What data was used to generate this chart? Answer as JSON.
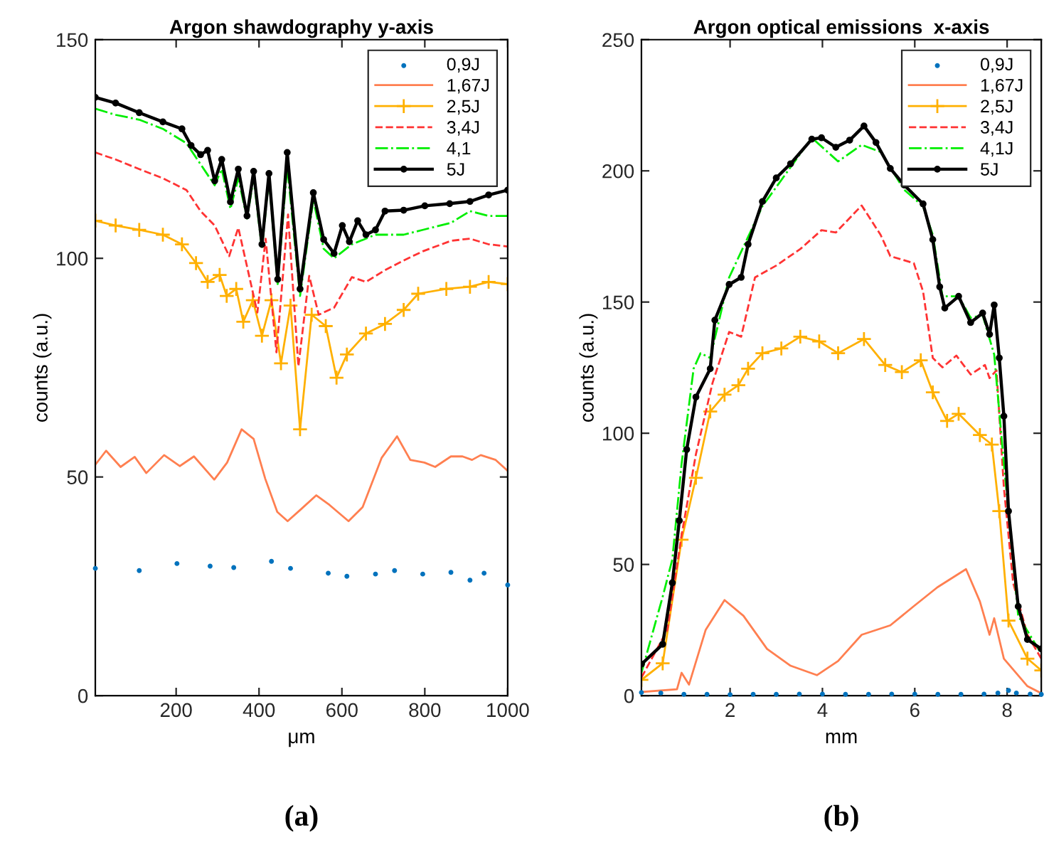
{
  "chart_data": [
    {
      "type": "line",
      "title": "Argon shawdography y-axis",
      "xlabel": "μm",
      "ylabel": "counts (a.u.)",
      "annotations": [
        "(a)"
      ],
      "xlim": [
        5,
        1000
      ],
      "ylim": [
        0,
        150
      ],
      "xticks": [
        200,
        400,
        600,
        800,
        1000
      ],
      "yticks": [
        0,
        50,
        100,
        150
      ],
      "grid": false,
      "legend": "top right",
      "series": [
        {
          "name": "0,9J",
          "type": "scatter",
          "color": "#0072bd",
          "marker": "circle",
          "x": [
            5,
            111,
            202,
            282,
            339,
            430,
            476,
            567,
            612,
            681,
            727,
            795,
            863,
            909,
            943,
            1000
          ],
          "values": [
            29.1,
            28.6,
            30.2,
            29.6,
            29.3,
            30.7,
            29.1,
            28,
            27.3,
            27.8,
            28.6,
            27.8,
            28.2,
            26.4,
            28,
            25.3
          ]
        },
        {
          "name": "1,67J",
          "color": "#ff7f50",
          "marker": "none",
          "line_style": "solid",
          "x": [
            5,
            31,
            66,
            100,
            128,
            171,
            209,
            243,
            292,
            323,
            358,
            387,
            415,
            444,
            469,
            501,
            538,
            570,
            616,
            650,
            696,
            733,
            765,
            799,
            825,
            863,
            891,
            914,
            935,
            971,
            1000
          ],
          "values": [
            52.8,
            56,
            52.3,
            54.6,
            50.9,
            55,
            52.5,
            54.7,
            49.4,
            53.3,
            60.9,
            58.7,
            49.6,
            42,
            39.9,
            42.6,
            45.8,
            43.6,
            39.9,
            43.1,
            54.4,
            59.3,
            53.9,
            53.3,
            52.3,
            54.7,
            54.7,
            53.9,
            55,
            53.9,
            51.4
          ]
        },
        {
          "name": "2,5J",
          "color": "#ffb000",
          "marker": "cross",
          "line_style": "solid",
          "x": [
            5,
            54,
            111,
            168,
            214,
            248,
            276,
            305,
            322,
            345,
            362,
            385,
            407,
            430,
            453,
            476,
            499,
            527,
            561,
            587,
            612,
            658,
            704,
            749,
            784,
            852,
            909,
            954,
            1000
          ],
          "values": [
            108.6,
            107.5,
            106.5,
            105.4,
            103.2,
            98.9,
            94.6,
            96.2,
            91.4,
            93,
            85.5,
            90.4,
            82.3,
            90.4,
            76,
            89.2,
            60.9,
            87.1,
            84.5,
            72.7,
            78,
            82.8,
            85,
            88.2,
            91.9,
            93,
            93.5,
            94.6,
            94.1
          ]
        },
        {
          "name": "3,4J",
          "color": "#ff3333",
          "marker": "none",
          "line_style": "dashed",
          "x": [
            5,
            54,
            111,
            168,
            225,
            259,
            293,
            328,
            350,
            396,
            416,
            442,
            470,
            495,
            521,
            544,
            581,
            624,
            658,
            704,
            749,
            795,
            863,
            909,
            954,
            1000
          ],
          "values": [
            124.2,
            122.6,
            120.4,
            118.3,
            115.6,
            110.8,
            107.5,
            100.5,
            107,
            87.6,
            104.5,
            78.5,
            110,
            75.3,
            96,
            87.1,
            88.7,
            95.7,
            94.6,
            97.3,
            99.5,
            101.6,
            104,
            104.5,
            103.2,
            102.7
          ]
        },
        {
          "name": "4,1",
          "color": "#00ee00",
          "marker": "none",
          "line_style": "dashdot",
          "x": [
            5,
            54,
            111,
            168,
            225,
            259,
            293,
            310,
            331,
            350,
            371,
            387,
            407,
            424,
            445,
            468,
            499,
            531,
            556,
            581,
            624,
            681,
            749,
            795,
            863,
            909,
            954,
            1000
          ],
          "values": [
            134.2,
            132.8,
            131.7,
            129.6,
            126.3,
            121.5,
            116.7,
            120.4,
            111.3,
            118.3,
            109.1,
            118.3,
            102.2,
            118.3,
            94.1,
            121,
            91.4,
            113.4,
            102.2,
            100,
            103.2,
            105.4,
            105.4,
            106.5,
            108.1,
            110.8,
            109.7,
            109.7
          ]
        },
        {
          "name": "5J",
          "color": "#000000",
          "marker": "circle",
          "line_style": "solid",
          "x": [
            5,
            54,
            111,
            168,
            214,
            236,
            259,
            276,
            293,
            310,
            331,
            350,
            371,
            387,
            407,
            424,
            445,
            468,
            499,
            531,
            556,
            581,
            601,
            618,
            638,
            658,
            681,
            704,
            749,
            800,
            860,
            909,
            954,
            1000
          ],
          "values": [
            136.8,
            135.5,
            133.3,
            131.2,
            129.6,
            125.8,
            123.7,
            124.7,
            117.7,
            122.6,
            112.9,
            120.4,
            109.7,
            119.9,
            103.2,
            119.4,
            95.2,
            124.2,
            93,
            115,
            104.3,
            101.1,
            107.5,
            103.8,
            108.6,
            105.4,
            106.5,
            110.8,
            111,
            112,
            112.5,
            113,
            114.5,
            115.6
          ]
        }
      ]
    },
    {
      "type": "line",
      "title": "Argon optical emissions  x-axis",
      "xlabel": "mm",
      "ylabel": "counts (a.u.)",
      "annotations": [
        "(b)"
      ],
      "xlim": [
        0.08,
        8.74
      ],
      "ylim": [
        0,
        250
      ],
      "xticks": [
        2,
        4,
        6,
        8
      ],
      "yticks": [
        0,
        50,
        100,
        150,
        200,
        250
      ],
      "grid": false,
      "legend": "top right",
      "series": [
        {
          "name": "0,9J",
          "type": "scatter",
          "color": "#0072bd",
          "marker": "circle",
          "x": [
            0.08,
            0.5,
            1,
            1.5,
            2,
            2.5,
            3,
            3.5,
            4,
            4.5,
            5,
            5.5,
            6,
            6.5,
            7,
            7.5,
            7.8,
            8.03,
            8.2,
            8.5,
            8.74
          ],
          "values": [
            1.2,
            1,
            0.5,
            0.5,
            0.4,
            0.5,
            0.5,
            0.6,
            0.6,
            0.5,
            0.5,
            0.6,
            0.6,
            0.5,
            0.5,
            0.6,
            1,
            2,
            1,
            0.6,
            0.5
          ]
        },
        {
          "name": "1,67J",
          "color": "#ff7f50",
          "marker": "none",
          "line_style": "solid",
          "x": [
            0.08,
            0.85,
            0.95,
            1.11,
            1.47,
            1.88,
            2.29,
            2.8,
            3.31,
            3.88,
            4.34,
            4.85,
            5.47,
            5.98,
            6.49,
            7.11,
            7.41,
            7.62,
            7.72,
            7.93,
            8.44,
            8.74
          ],
          "values": [
            1.4,
            2.4,
            8.7,
            4.2,
            25,
            36.4,
            30.4,
            17.8,
            11.4,
            7.8,
            13.2,
            23.2,
            26.8,
            34.1,
            41.3,
            48.2,
            35.9,
            23.2,
            29.5,
            14.1,
            3.6,
            0.9
          ]
        },
        {
          "name": "2,5J",
          "color": "#ffb000",
          "marker": "cross",
          "line_style": "solid",
          "x": [
            0.08,
            0.54,
            0.95,
            1.26,
            1.57,
            1.88,
            2.18,
            2.39,
            2.7,
            3.11,
            3.52,
            3.93,
            4.34,
            4.9,
            5.36,
            5.72,
            6.13,
            6.39,
            6.7,
            6.95,
            7.41,
            7.67,
            7.83,
            8.03,
            8.44,
            8.74
          ],
          "values": [
            6,
            12.3,
            59.4,
            83,
            108.3,
            114.7,
            118.3,
            124.6,
            130.5,
            132.3,
            136.8,
            135,
            130.5,
            135.9,
            126,
            123.3,
            127.8,
            115.6,
            104.7,
            107.4,
            99.3,
            95.7,
            70.3,
            28.6,
            14.1,
            9.6
          ]
        },
        {
          "name": "3,4J",
          "color": "#ff3333",
          "marker": "none",
          "line_style": "dashed",
          "x": [
            0.08,
            0.64,
            0.95,
            1.26,
            1.62,
            1.98,
            2.24,
            2.54,
            3.0,
            3.52,
            3.98,
            4.29,
            4.85,
            5.26,
            5.47,
            5.98,
            6.18,
            6.39,
            6.6,
            6.9,
            7.21,
            7.52,
            7.62,
            7.77,
            7.93,
            8.13,
            8.44,
            8.74
          ],
          "values": [
            6.9,
            25,
            61.2,
            92,
            119.2,
            138.6,
            136.8,
            159.4,
            163.9,
            170.2,
            177.4,
            176.5,
            186.8,
            175.6,
            167.5,
            164.8,
            154,
            128.7,
            125.1,
            129.6,
            122.4,
            126,
            121,
            124,
            79.3,
            43,
            23.2,
            14.1
          ]
        },
        {
          "name": "4,1J",
          "color": "#00ee00",
          "marker": "none",
          "line_style": "dashdot",
          "x": [
            0.08,
            0.54,
            0.75,
            0.95,
            1.21,
            1.36,
            1.57,
            1.98,
            2.7,
            3.77,
            4.34,
            4.85,
            5.26,
            5.77,
            6.18,
            6.39,
            6.6,
            6.95,
            7.21,
            7.47,
            7.72,
            7.93,
            8.24,
            8.74
          ],
          "values": [
            8.7,
            37.7,
            52,
            88.4,
            124.6,
            130.5,
            128.7,
            159.4,
            186.5,
            212.6,
            203.6,
            209.9,
            207.2,
            192.8,
            186.5,
            175.6,
            152.2,
            152.2,
            144,
            145,
            130,
            88.4,
            30.4,
            16
          ]
        },
        {
          "name": "5J",
          "color": "#000000",
          "marker": "circle",
          "line_style": "solid",
          "x": [
            0.08,
            0.54,
            0.75,
            0.9,
            1.06,
            1.26,
            1.57,
            1.67,
            1.98,
            2.24,
            2.39,
            2.7,
            3.0,
            3.31,
            3.77,
            3.98,
            4.29,
            4.59,
            4.9,
            5.16,
            5.47,
            5.77,
            6.18,
            6.39,
            6.54,
            6.65,
            6.95,
            7.21,
            7.47,
            7.62,
            7.72,
            7.83,
            7.93,
            8.03,
            8.24,
            8.44,
            8.74
          ],
          "values": [
            12,
            19.6,
            43,
            66.7,
            93.8,
            113.8,
            124.6,
            143.1,
            156.7,
            159.4,
            172,
            188.3,
            197.3,
            202.7,
            212.1,
            212.6,
            209,
            211.7,
            217.1,
            210.8,
            200.9,
            194.6,
            187.4,
            173.8,
            155.8,
            147.7,
            152.2,
            142.2,
            145.8,
            137.7,
            148.9,
            128.7,
            106.5,
            70.3,
            34,
            21.4,
            17.8
          ]
        }
      ]
    }
  ]
}
